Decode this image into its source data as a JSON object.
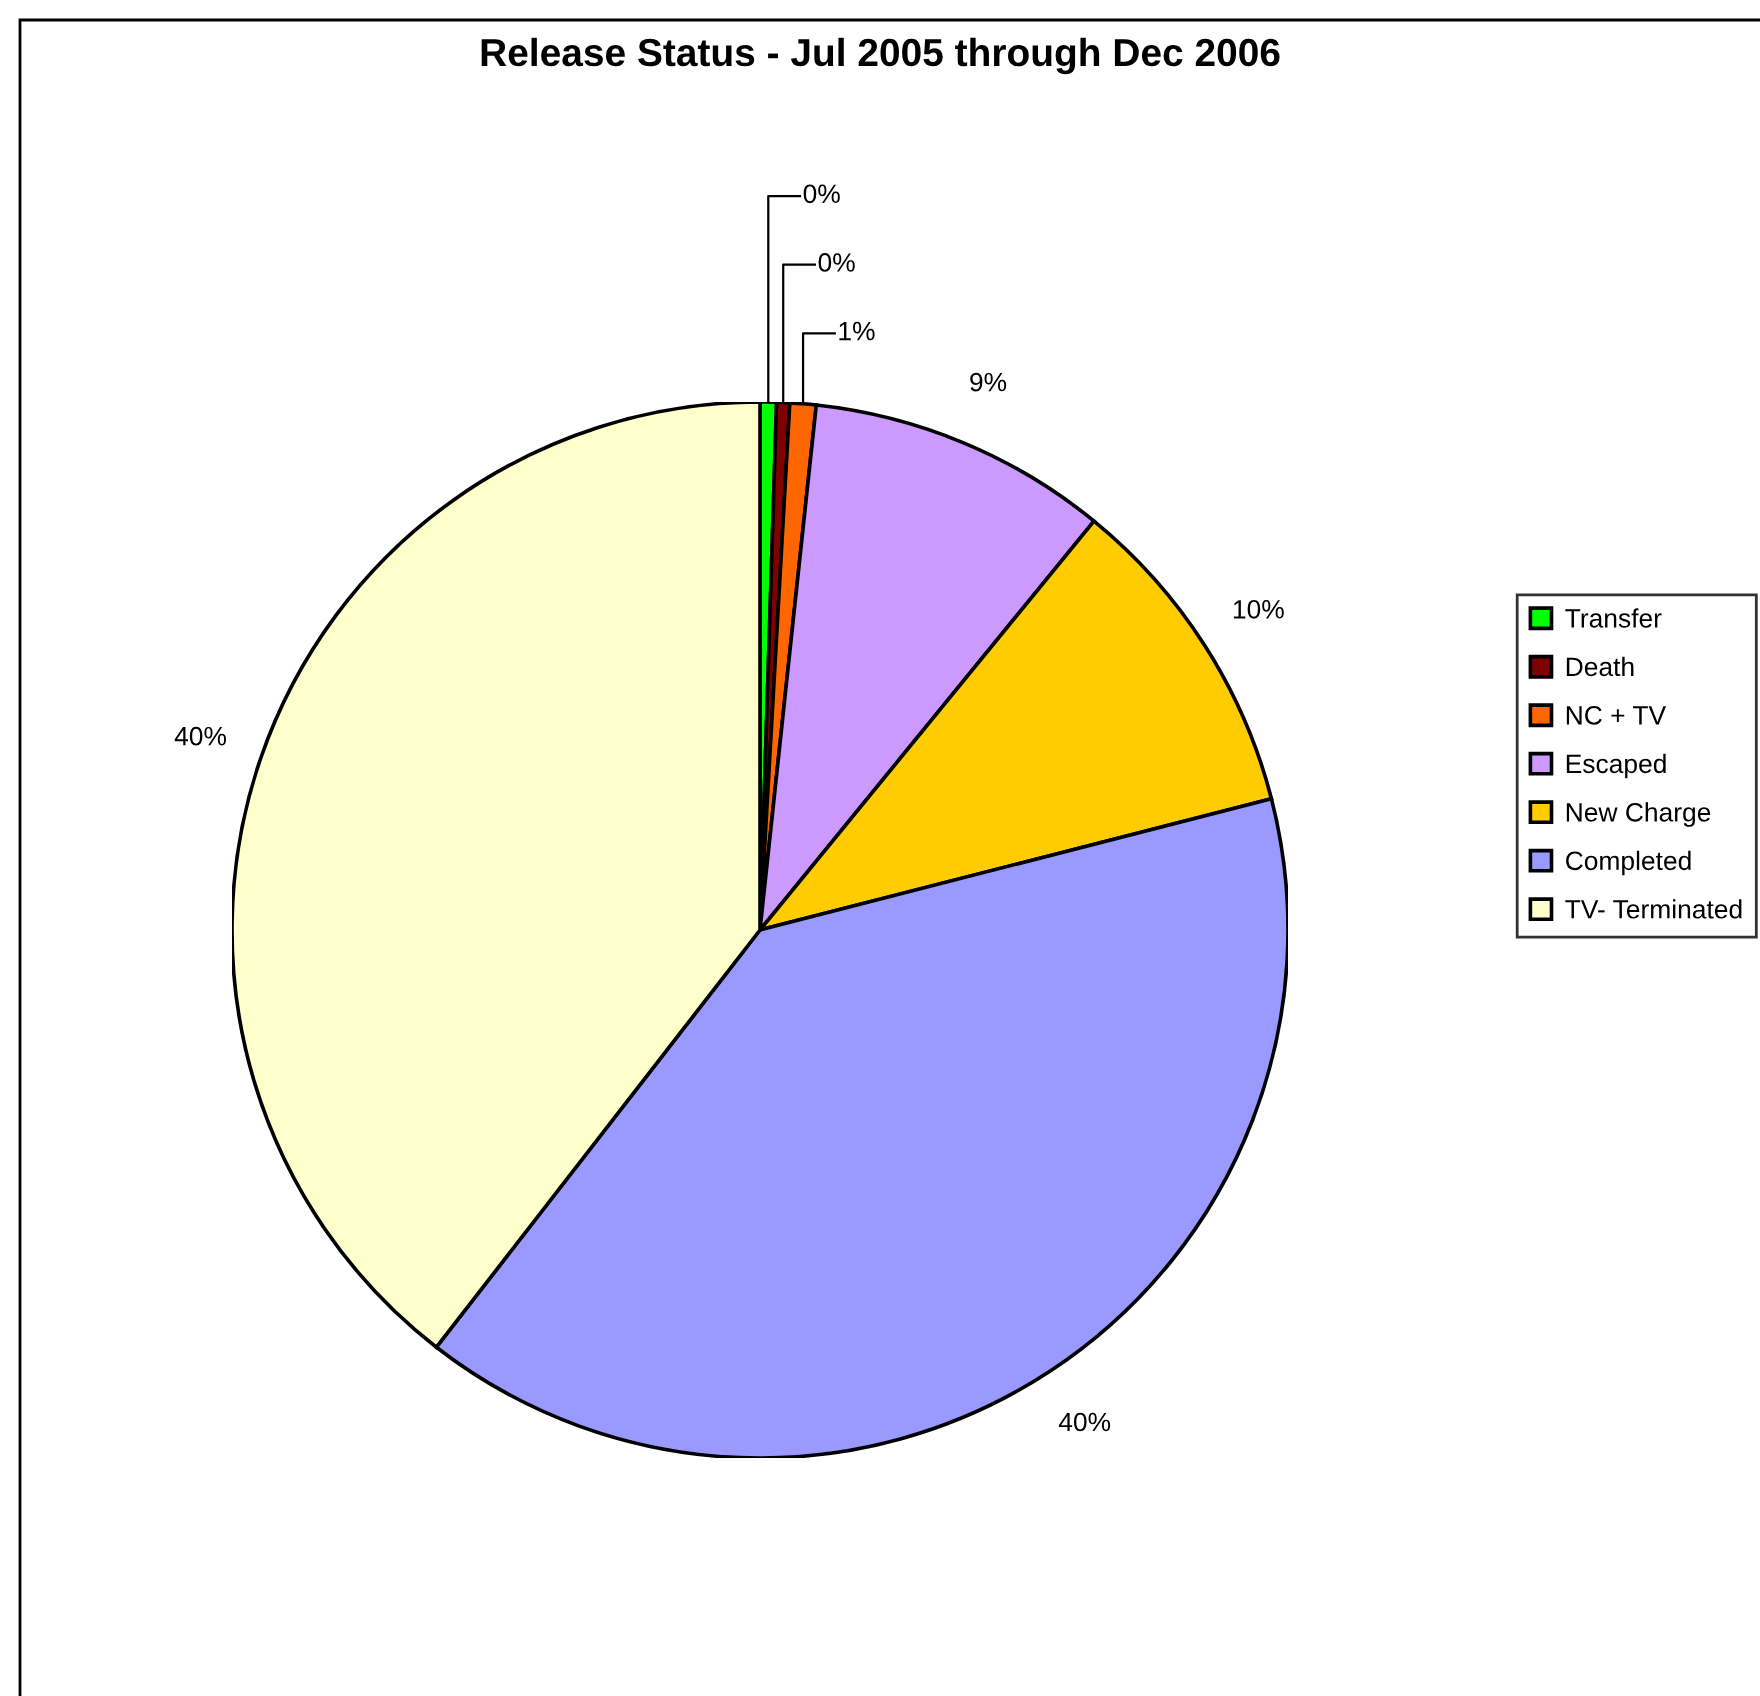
{
  "chart_data": {
    "type": "pie",
    "title": "Release Status - Jul 2005 through Dec 2006",
    "categories": [
      "Transfer",
      "Death",
      "NC + TV",
      "Escaped",
      "New Charge",
      "Completed",
      "TV- Terminated"
    ],
    "values": [
      0.5,
      0.4,
      0.8,
      9.2,
      10.1,
      39.5,
      39.5
    ],
    "value_labels": [
      "0%",
      "0%",
      "1%",
      "9%",
      "10%",
      "40%",
      "40%"
    ],
    "colors": [
      "#00ff00",
      "#800000",
      "#ff6600",
      "#cc99ff",
      "#ffcc00",
      "#9999ff",
      "#ffffcc"
    ],
    "legend": "right"
  }
}
